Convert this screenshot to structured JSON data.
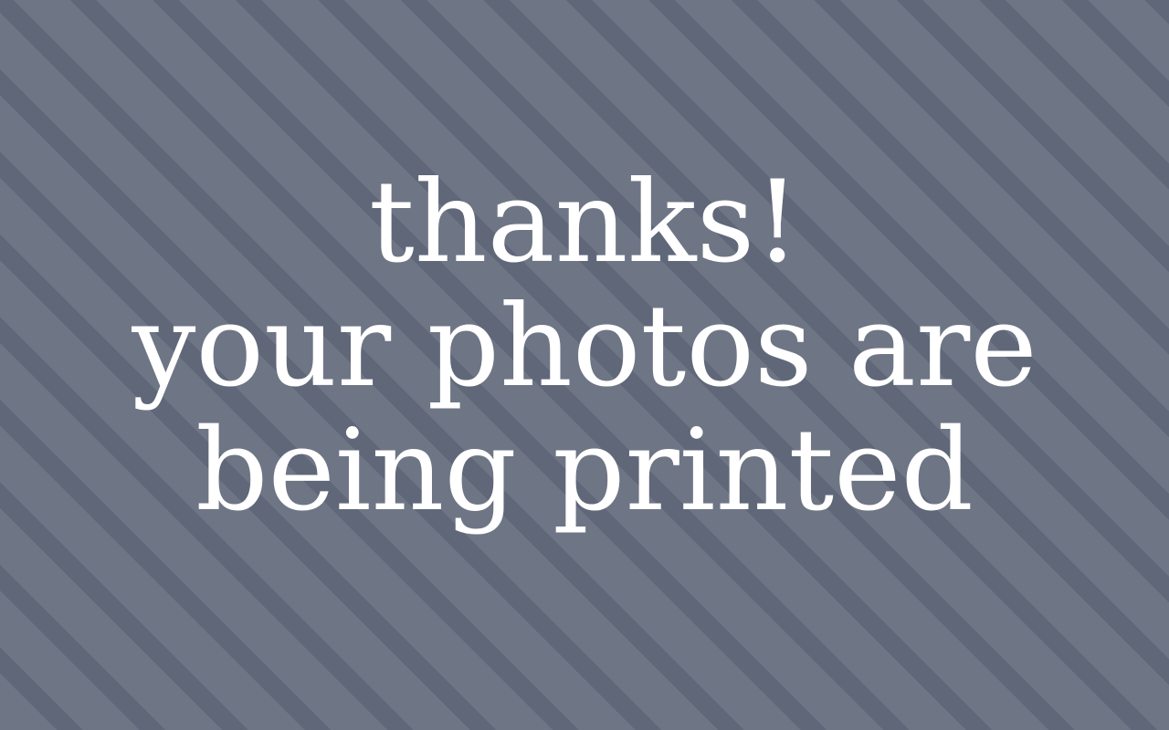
{
  "screen": {
    "background_color": "#6e7585",
    "stripe_color": "#5f6779",
    "text_color": "#ffffff"
  },
  "message": {
    "line1": "thanks!",
    "line2": "your photos are",
    "line3": "being printed"
  }
}
